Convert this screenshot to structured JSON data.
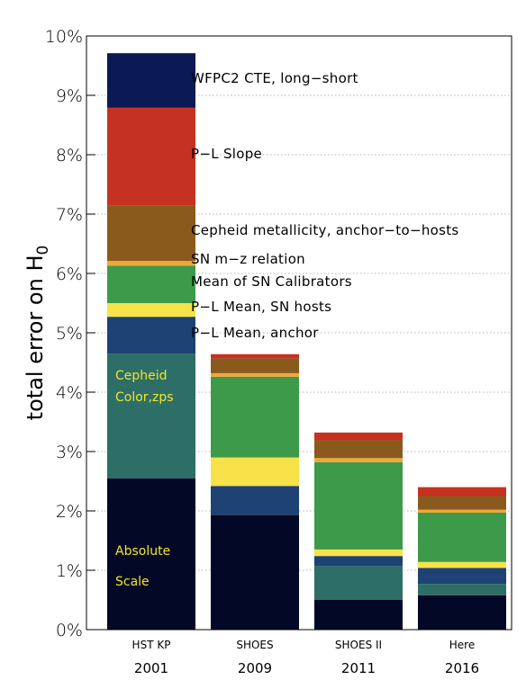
{
  "chart_data": {
    "type": "bar",
    "stacked": true,
    "ylabel": "total error on H",
    "ylabel_sub": "0",
    "ylim": [
      0,
      10
    ],
    "yticks": [
      "0%",
      "1%",
      "2%",
      "3%",
      "4%",
      "5%",
      "6%",
      "7%",
      "8%",
      "9%",
      "10%"
    ],
    "grid": "horizontal-dotted",
    "categories": [
      "HST KP",
      "SHOES",
      "SHOES II",
      "Here"
    ],
    "years": [
      "2001",
      "2009",
      "2011",
      "2016"
    ],
    "series": [
      {
        "key": "absolute_scale",
        "color": "#020826",
        "values": [
          2.55,
          1.93,
          0.5,
          0.58
        ]
      },
      {
        "key": "cepheid_color_zps",
        "color": "#2d6e67",
        "values": [
          2.1,
          0.0,
          0.57,
          0.19
        ]
      },
      {
        "key": "pl_mean_anchor",
        "color": "#1d4273",
        "values": [
          0.62,
          0.49,
          0.17,
          0.27
        ]
      },
      {
        "key": "pl_mean_sn_hosts",
        "color": "#f7e24a",
        "values": [
          0.23,
          0.48,
          0.11,
          0.1
        ]
      },
      {
        "key": "mean_sn_calibrators",
        "color": "#3d9a4a",
        "values": [
          0.63,
          1.36,
          1.47,
          0.83
        ]
      },
      {
        "key": "sn_m_z",
        "color": "#f0a73a",
        "values": [
          0.08,
          0.06,
          0.07,
          0.05
        ]
      },
      {
        "key": "cepheid_metallicity",
        "color": "#8a5a1c",
        "values": [
          0.94,
          0.25,
          0.3,
          0.23
        ]
      },
      {
        "key": "pl_slope",
        "color": "#c53221",
        "values": [
          1.64,
          0.07,
          0.13,
          0.15
        ]
      },
      {
        "key": "wfpc2_cte",
        "color": "#0b1a54",
        "values": [
          0.92,
          0.0,
          0.0,
          0.0
        ]
      }
    ],
    "annotations": [
      {
        "text": "WFPC2 CTE, long−short",
        "series": "wfpc2_cte"
      },
      {
        "text": "P−L Slope",
        "series": "pl_slope"
      },
      {
        "text": "Cepheid metallicity, anchor−to−hosts",
        "series": "cepheid_metallicity"
      },
      {
        "text": "SN m−z relation",
        "series": "sn_m_z"
      },
      {
        "text": "Mean of SN Calibrators",
        "series": "mean_sn_calibrators"
      },
      {
        "text": "P−L Mean, SN hosts",
        "series": "pl_mean_sn_hosts"
      },
      {
        "text": "P−L Mean, anchor",
        "series": "pl_mean_anchor"
      }
    ],
    "inner_labels": [
      {
        "lines": [
          "Cepheid",
          "Color,zps"
        ],
        "series": "cepheid_color_zps",
        "color": "#f2e52a"
      },
      {
        "lines": [
          "Absolute",
          "Scale"
        ],
        "series": "absolute_scale",
        "color": "#f2e52a"
      }
    ]
  }
}
